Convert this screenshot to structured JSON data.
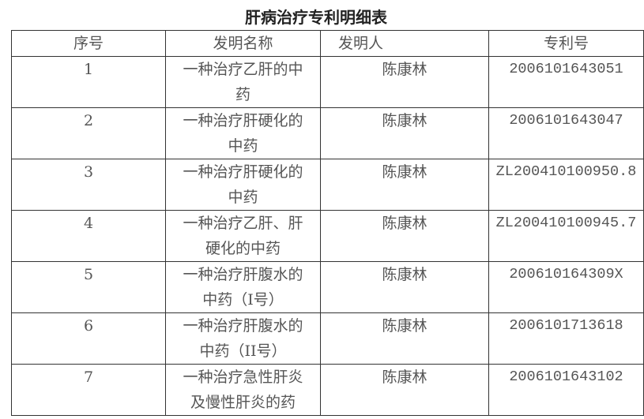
{
  "title": "肝病治疗专利明细表",
  "columns": [
    "序号",
    "发明名称",
    "发明人",
    "专利号"
  ],
  "rows": [
    {
      "no": "1",
      "name": "一种治疗乙肝的中药",
      "inventor": "陈康林",
      "patent": "2006101643051"
    },
    {
      "no": "2",
      "name": "一种治疗肝硬化的中药",
      "inventor": "陈康林",
      "patent": "2006101643047"
    },
    {
      "no": "3",
      "name": "一种治疗肝硬化的中药",
      "inventor": "陈康林",
      "patent": "ZL200410100950.8"
    },
    {
      "no": "4",
      "name": "一种治疗乙肝、肝硬化的中药",
      "inventor": "陈康林",
      "patent": "ZL200410100945.7"
    },
    {
      "no": "5",
      "name": "一种治疗肝腹水的中药（I号）",
      "inventor": "陈康林",
      "patent": "200610164309X"
    },
    {
      "no": "6",
      "name": "一种治疗肝腹水的中药（II号）",
      "inventor": "陈康林",
      "patent": "2006101713618"
    },
    {
      "no": "7",
      "name": "一种治疗急性肝炎及慢性肝炎的药",
      "inventor": "陈康林",
      "patent": "2006101643102"
    }
  ]
}
